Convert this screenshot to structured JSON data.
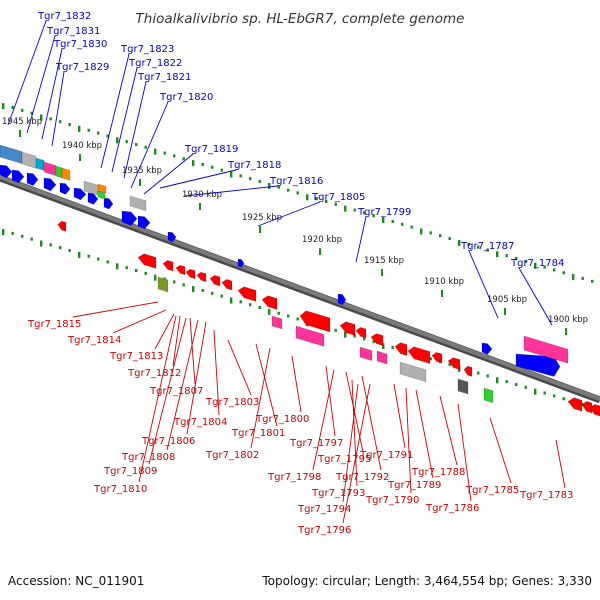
{
  "title": "Thioalkalivibrio sp. HL-EbGR7, complete genome",
  "footer": {
    "accession": "Accession: NC_011901",
    "summary": "Topology: circular; Length: 3,464,554 bp; Genes: 3,330"
  },
  "colors": {
    "forward_label": "#0000cc",
    "reverse_label": "#cc0000",
    "backbone": "#7a7a7a",
    "tick_dot": "#1a8c1a",
    "forward_gene": "#0000ff",
    "reverse_gene": "#ff0000",
    "feature_pink": "#ff3399",
    "feature_gray": "#b0b0b0",
    "feature_olive": "#7a9a2a",
    "feature_green": "#33cc33",
    "feature_orange": "#ff8800",
    "feature_cyan": "#00aacc"
  },
  "scale": {
    "unit": "kbp",
    "ticks": [
      "1945 kbp",
      "1940 kbp",
      "1935 kbp",
      "1930 kbp",
      "1925 kbp",
      "1920 kbp",
      "1915 kbp",
      "1910 kbp",
      "1905 kbp",
      "1900 kbp"
    ]
  },
  "forward_labels": [
    "Tgr7_1832",
    "Tgr7_1831",
    "Tgr7_1830",
    "Tgr7_1829",
    "Tgr7_1823",
    "Tgr7_1822",
    "Tgr7_1821",
    "Tgr7_1820",
    "Tgr7_1819",
    "Tgr7_1818",
    "Tgr7_1816",
    "Tgr7_1805",
    "Tgr7_1799",
    "Tgr7_1787",
    "Tgr7_1784"
  ],
  "reverse_labels": [
    "Tgr7_1815",
    "Tgr7_1814",
    "Tgr7_1813",
    "Tgr7_1812",
    "Tgr7_1807",
    "Tgr7_1804",
    "Tgr7_1806",
    "Tgr7_1808",
    "Tgr7_1809",
    "Tgr7_1810",
    "Tgr7_1803",
    "Tgr7_1801",
    "Tgr7_1802",
    "Tgr7_1800",
    "Tgr7_1797",
    "Tgr7_1798",
    "Tgr7_1795",
    "Tgr7_1792",
    "Tgr7_1793",
    "Tgr7_1794",
    "Tgr7_1796",
    "Tgr7_1791",
    "Tgr7_1789",
    "Tgr7_1790",
    "Tgr7_1788",
    "Tgr7_1786",
    "Tgr7_1785",
    "Tgr7_1783"
  ],
  "forward_genes": [
    {
      "color": "#0000ff",
      "kind": "arrow"
    },
    {
      "color": "#0000ff",
      "kind": "arrow"
    },
    {
      "color": "#0000ff",
      "kind": "arrow"
    },
    {
      "color": "#0000ff",
      "kind": "arrow"
    },
    {
      "color": "#0000ff",
      "kind": "arrow"
    },
    {
      "color": "#0000ff",
      "kind": "arrow"
    },
    {
      "color": "#0000ff",
      "kind": "arrow"
    },
    {
      "color": "#0000ff",
      "kind": "arrow"
    },
    {
      "color": "#0000ff",
      "kind": "arrow"
    },
    {
      "color": "#0000ff",
      "kind": "arrow"
    },
    {
      "color": "#0000ff",
      "kind": "arrow"
    },
    {
      "color": "#0000ff",
      "kind": "arrow"
    },
    {
      "color": "#0000ff",
      "kind": "arrow"
    },
    {
      "color": "#0000ff",
      "kind": "arrow"
    },
    {
      "color": "#0000ff",
      "kind": "arrow"
    },
    {
      "color": "#0000ff",
      "kind": "arrow"
    }
  ],
  "forward_features": [
    {
      "color": "#4488cc",
      "kind": "box"
    },
    {
      "color": "#b0b0b0",
      "kind": "box"
    },
    {
      "color": "#00aacc",
      "kind": "box"
    },
    {
      "color": "#ff3399",
      "kind": "box"
    },
    {
      "color": "#33cc33",
      "kind": "box"
    },
    {
      "color": "#ff8800",
      "kind": "box"
    },
    {
      "color": "#b0b0b0",
      "kind": "box"
    },
    {
      "color": "#ff8800",
      "kind": "box"
    },
    {
      "color": "#33cc33",
      "kind": "box"
    },
    {
      "color": "#b0b0b0",
      "kind": "box"
    },
    {
      "color": "#ff3399",
      "kind": "box"
    }
  ],
  "reverse_genes": [
    {
      "color": "#ff0000",
      "kind": "arrow"
    },
    {
      "color": "#ff0000",
      "kind": "arrow"
    },
    {
      "color": "#ff0000",
      "kind": "arrow"
    },
    {
      "color": "#ff0000",
      "kind": "arrow"
    },
    {
      "color": "#ff0000",
      "kind": "arrow"
    },
    {
      "color": "#ff0000",
      "kind": "arrow"
    },
    {
      "color": "#ff0000",
      "kind": "arrow"
    },
    {
      "color": "#ff0000",
      "kind": "arrow"
    },
    {
      "color": "#ff0000",
      "kind": "arrow"
    },
    {
      "color": "#ff0000",
      "kind": "arrow"
    },
    {
      "color": "#ff0000",
      "kind": "arrow"
    },
    {
      "color": "#ff0000",
      "kind": "arrow"
    },
    {
      "color": "#ff0000",
      "kind": "arrow"
    },
    {
      "color": "#ff0000",
      "kind": "arrow"
    },
    {
      "color": "#ff0000",
      "kind": "arrow"
    },
    {
      "color": "#ff0000",
      "kind": "arrow"
    },
    {
      "color": "#ff0000",
      "kind": "arrow"
    },
    {
      "color": "#ff0000",
      "kind": "arrow"
    },
    {
      "color": "#ff0000",
      "kind": "arrow"
    },
    {
      "color": "#ff0000",
      "kind": "arrow"
    },
    {
      "color": "#ff0000",
      "kind": "arrow"
    },
    {
      "color": "#ff0000",
      "kind": "arrow"
    },
    {
      "color": "#ff0000",
      "kind": "arrow"
    },
    {
      "color": "#ff0000",
      "kind": "arrow"
    }
  ],
  "reverse_features": [
    {
      "color": "#7a9a2a",
      "kind": "box"
    },
    {
      "color": "#ff3399",
      "kind": "box"
    },
    {
      "color": "#ff3399",
      "kind": "box"
    },
    {
      "color": "#ff3399",
      "kind": "box"
    },
    {
      "color": "#ff3399",
      "kind": "box"
    },
    {
      "color": "#b0b0b0",
      "kind": "box"
    },
    {
      "color": "#555555",
      "kind": "box"
    },
    {
      "color": "#33cc33",
      "kind": "box"
    }
  ]
}
